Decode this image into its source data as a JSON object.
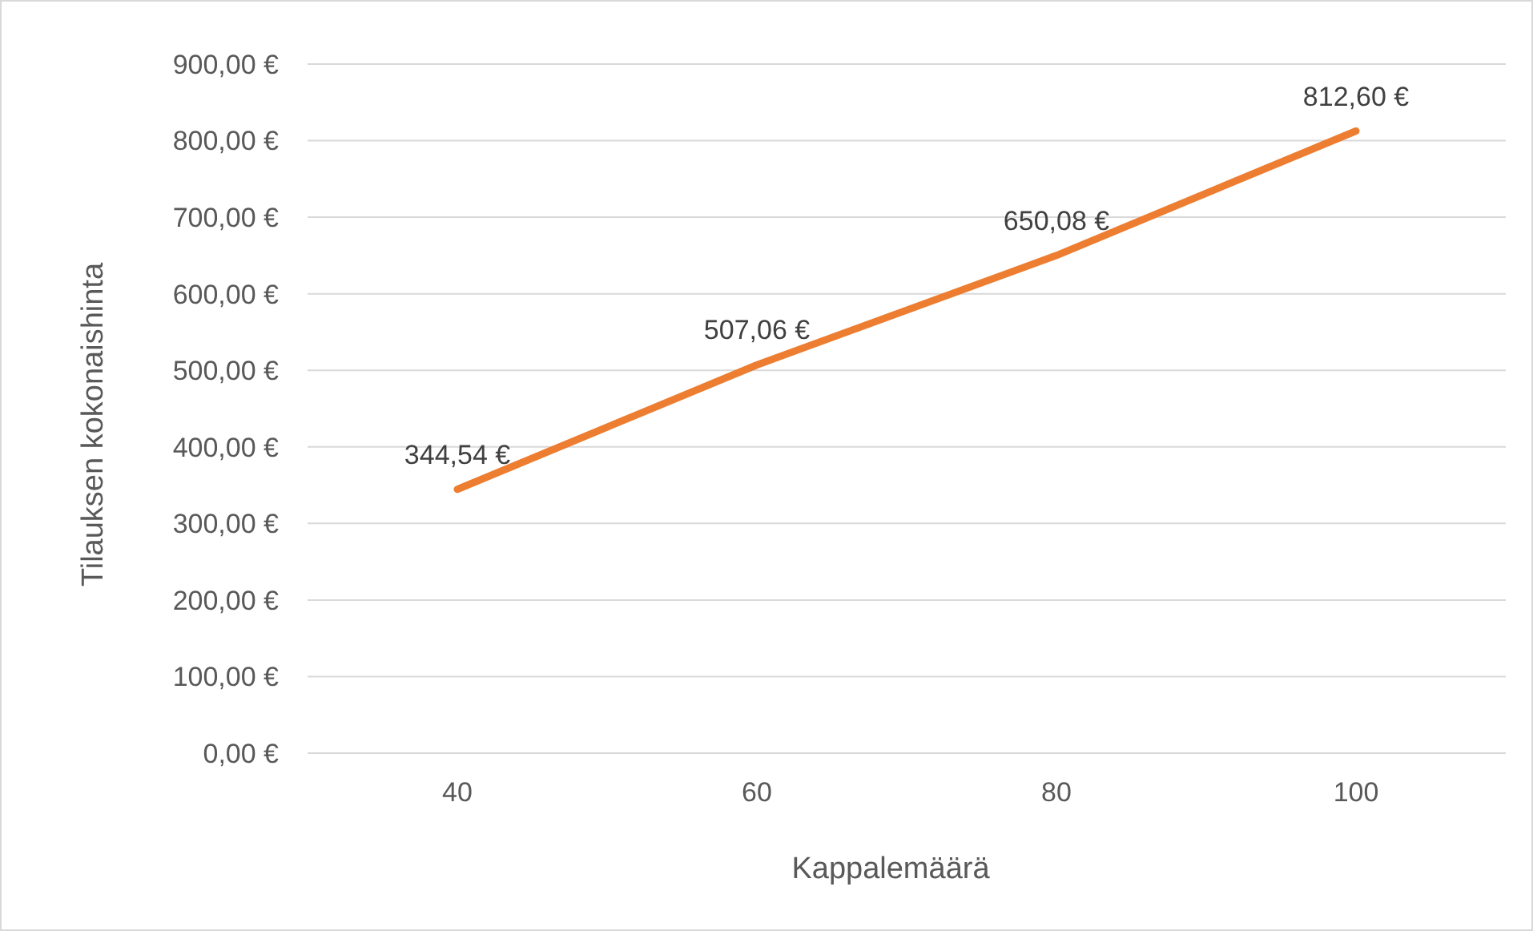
{
  "chart_data": {
    "type": "line",
    "xlabel": "Kappalemäärä",
    "ylabel": "Tilauksen kokonaishinta",
    "categories": [
      "40",
      "60",
      "80",
      "100"
    ],
    "series": [
      {
        "color": "#ed7d31",
        "values": [
          344.54,
          507.06,
          650.08,
          812.6
        ],
        "value_labels": [
          "344,54 €",
          "507,06 €",
          "650,08 €",
          "812,60 €"
        ]
      }
    ],
    "ylim": [
      0,
      900
    ],
    "yticks": [
      {
        "value": 0,
        "label": "0,00 €"
      },
      {
        "value": 100,
        "label": "100,00 €"
      },
      {
        "value": 200,
        "label": "200,00 €"
      },
      {
        "value": 300,
        "label": "300,00 €"
      },
      {
        "value": 400,
        "label": "400,00 €"
      },
      {
        "value": 500,
        "label": "500,00 €"
      },
      {
        "value": 600,
        "label": "600,00 €"
      },
      {
        "value": 700,
        "label": "700,00 €"
      },
      {
        "value": 800,
        "label": "800,00 €"
      },
      {
        "value": 900,
        "label": "900,00 €"
      }
    ],
    "grid": "y",
    "marker": "none",
    "line_style": "solid"
  }
}
